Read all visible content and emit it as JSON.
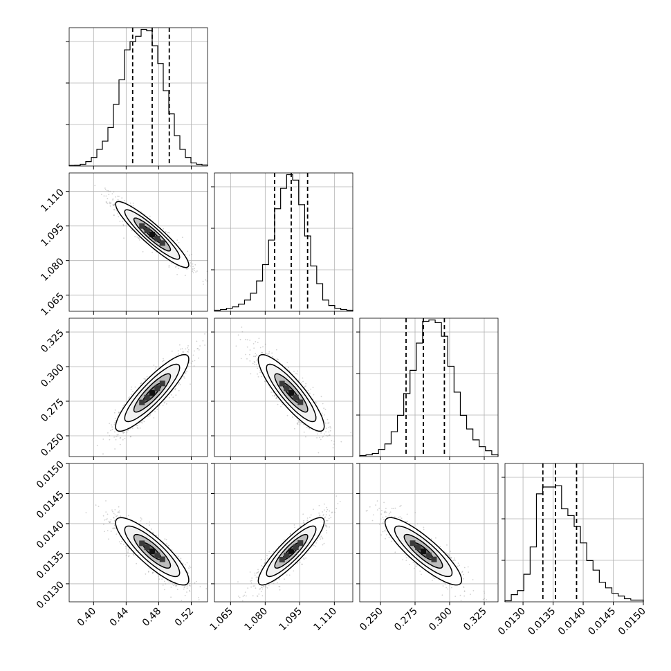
{
  "chart_data": {
    "type": "corner",
    "parameters": [
      {
        "range": [
          0.37,
          0.54
        ],
        "ticks": [
          0.4,
          0.44,
          0.48,
          0.52
        ],
        "tick_labels": [
          "0.40",
          "0.44",
          "0.48",
          "0.52"
        ],
        "quantiles": [
          0.448,
          0.472,
          0.493
        ]
      },
      {
        "range": [
          1.058,
          1.118
        ],
        "ticks": [
          1.065,
          1.08,
          1.095,
          1.11
        ],
        "tick_labels": [
          "1.065",
          "1.080",
          "1.095",
          "1.110"
        ],
        "quantiles": [
          1.0841,
          1.0913,
          1.0984
        ]
      },
      {
        "range": [
          0.235,
          0.335
        ],
        "ticks": [
          0.25,
          0.275,
          0.3,
          0.325
        ],
        "tick_labels": [
          "0.250",
          "0.275",
          "0.300",
          "0.325"
        ],
        "quantiles": [
          0.2685,
          0.281,
          0.2962
        ]
      },
      {
        "range": [
          0.0127,
          0.015
        ],
        "ticks": [
          0.013,
          0.0135,
          0.014,
          0.0145,
          0.015
        ],
        "tick_labels": [
          "0.0130",
          "0.0135",
          "0.0140",
          "0.0145",
          "0.0150"
        ],
        "quantiles": [
          0.01333,
          0.01354,
          0.01389
        ]
      }
    ],
    "histograms": [
      [
        0.2,
        0.3,
        1,
        3,
        6,
        12,
        18,
        28,
        45,
        63,
        85,
        91,
        95,
        100,
        99,
        88,
        75,
        55,
        38,
        22,
        12,
        6,
        2,
        1,
        0.5
      ],
      [
        0.5,
        1,
        2,
        3,
        5,
        8,
        13,
        22,
        34,
        52,
        75,
        90,
        100,
        96,
        78,
        55,
        33,
        20,
        8,
        4,
        2,
        1,
        0.5
      ],
      [
        0.5,
        1,
        2,
        5,
        9,
        18,
        30,
        46,
        63,
        83,
        99,
        100,
        98,
        88,
        66,
        47,
        30,
        20,
        12,
        7,
        4,
        1
      ],
      [
        0.5,
        5,
        8,
        20,
        40,
        79,
        84,
        84,
        85,
        68,
        63,
        55,
        43,
        30,
        23,
        14,
        10,
        6,
        4,
        2,
        1,
        1
      ]
    ],
    "correlations": [
      {
        "row": 1,
        "col": 0,
        "rho": -0.92
      },
      {
        "row": 2,
        "col": 0,
        "rho": 0.88
      },
      {
        "row": 2,
        "col": 1,
        "rho": -0.87
      },
      {
        "row": 3,
        "col": 0,
        "rho": -0.85
      },
      {
        "row": 3,
        "col": 1,
        "rho": 0.88
      },
      {
        "row": 3,
        "col": 2,
        "rho": -0.86
      }
    ],
    "grid": true,
    "colors": {
      "line": "#000000",
      "scatter": "#9a9a9a",
      "grid": "#b0b0b0"
    }
  }
}
